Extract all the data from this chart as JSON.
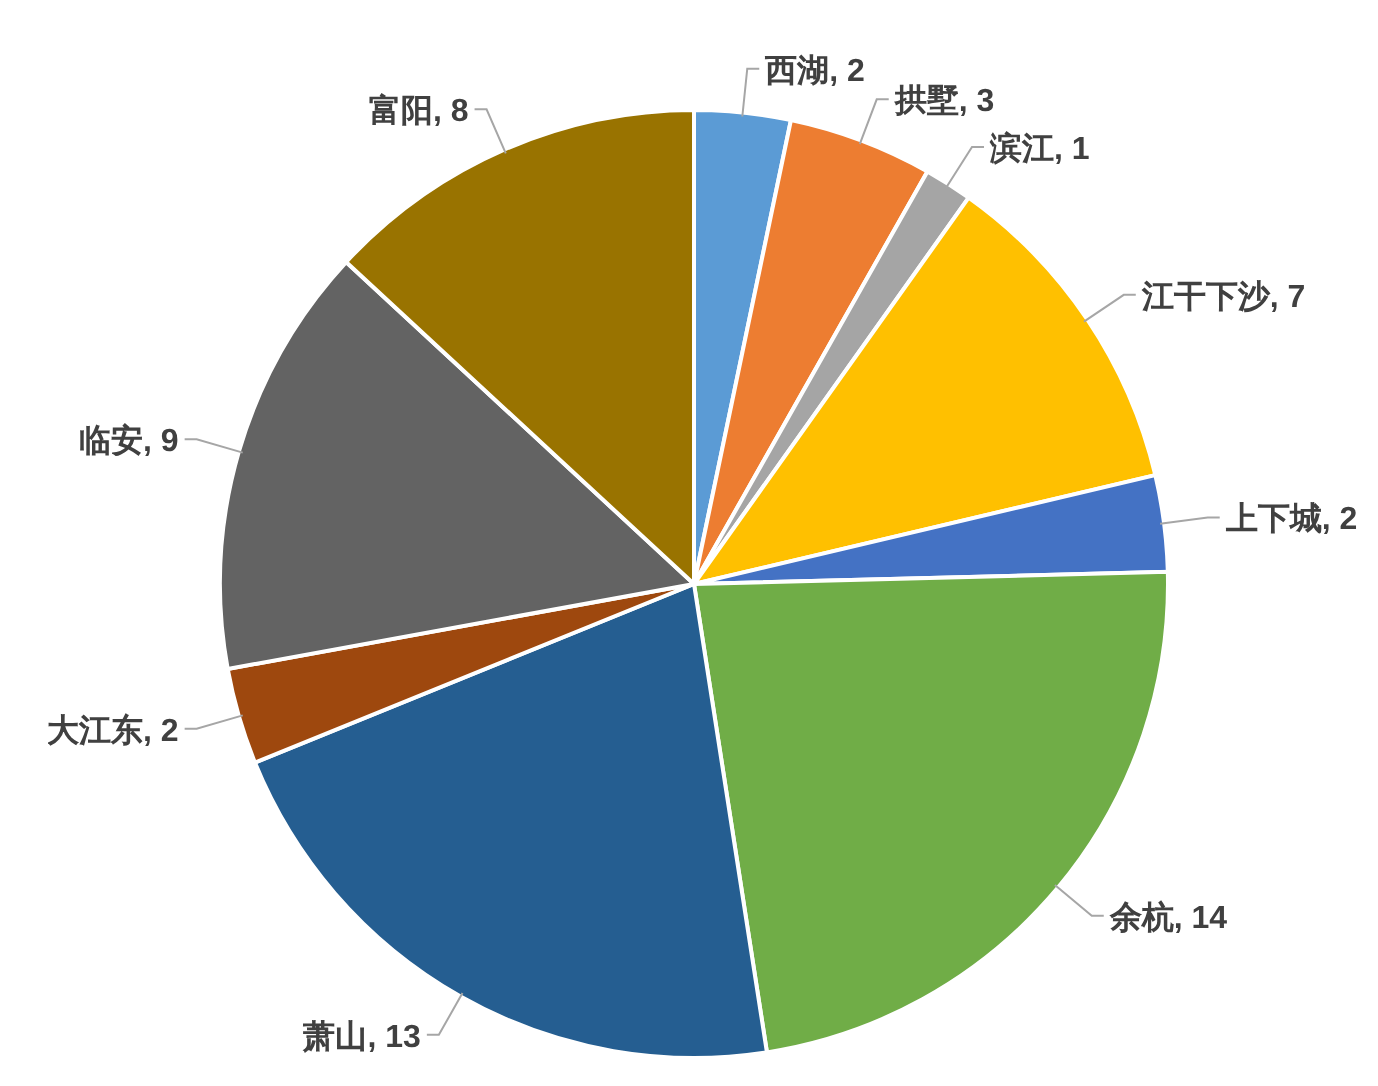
{
  "chart_data": {
    "type": "pie",
    "categories": [
      "西湖",
      "拱墅",
      "滨江",
      "江干下沙",
      "上下城",
      "余杭",
      "萧山",
      "大江东",
      "临安",
      "富阳"
    ],
    "values": [
      2,
      3,
      1,
      7,
      2,
      14,
      13,
      2,
      9,
      8
    ],
    "colors": [
      "#5b9bd5",
      "#ed7d31",
      "#a5a5a5",
      "#ffc000",
      "#4472c4",
      "#70ad47",
      "#255e91",
      "#9e480e",
      "#636363",
      "#997300"
    ],
    "value_labels": [
      ", 2",
      ", 3",
      ", 1",
      ", 7",
      ", 2",
      ", 14",
      ", 13",
      ", 2",
      ", 9",
      ", 8"
    ]
  }
}
